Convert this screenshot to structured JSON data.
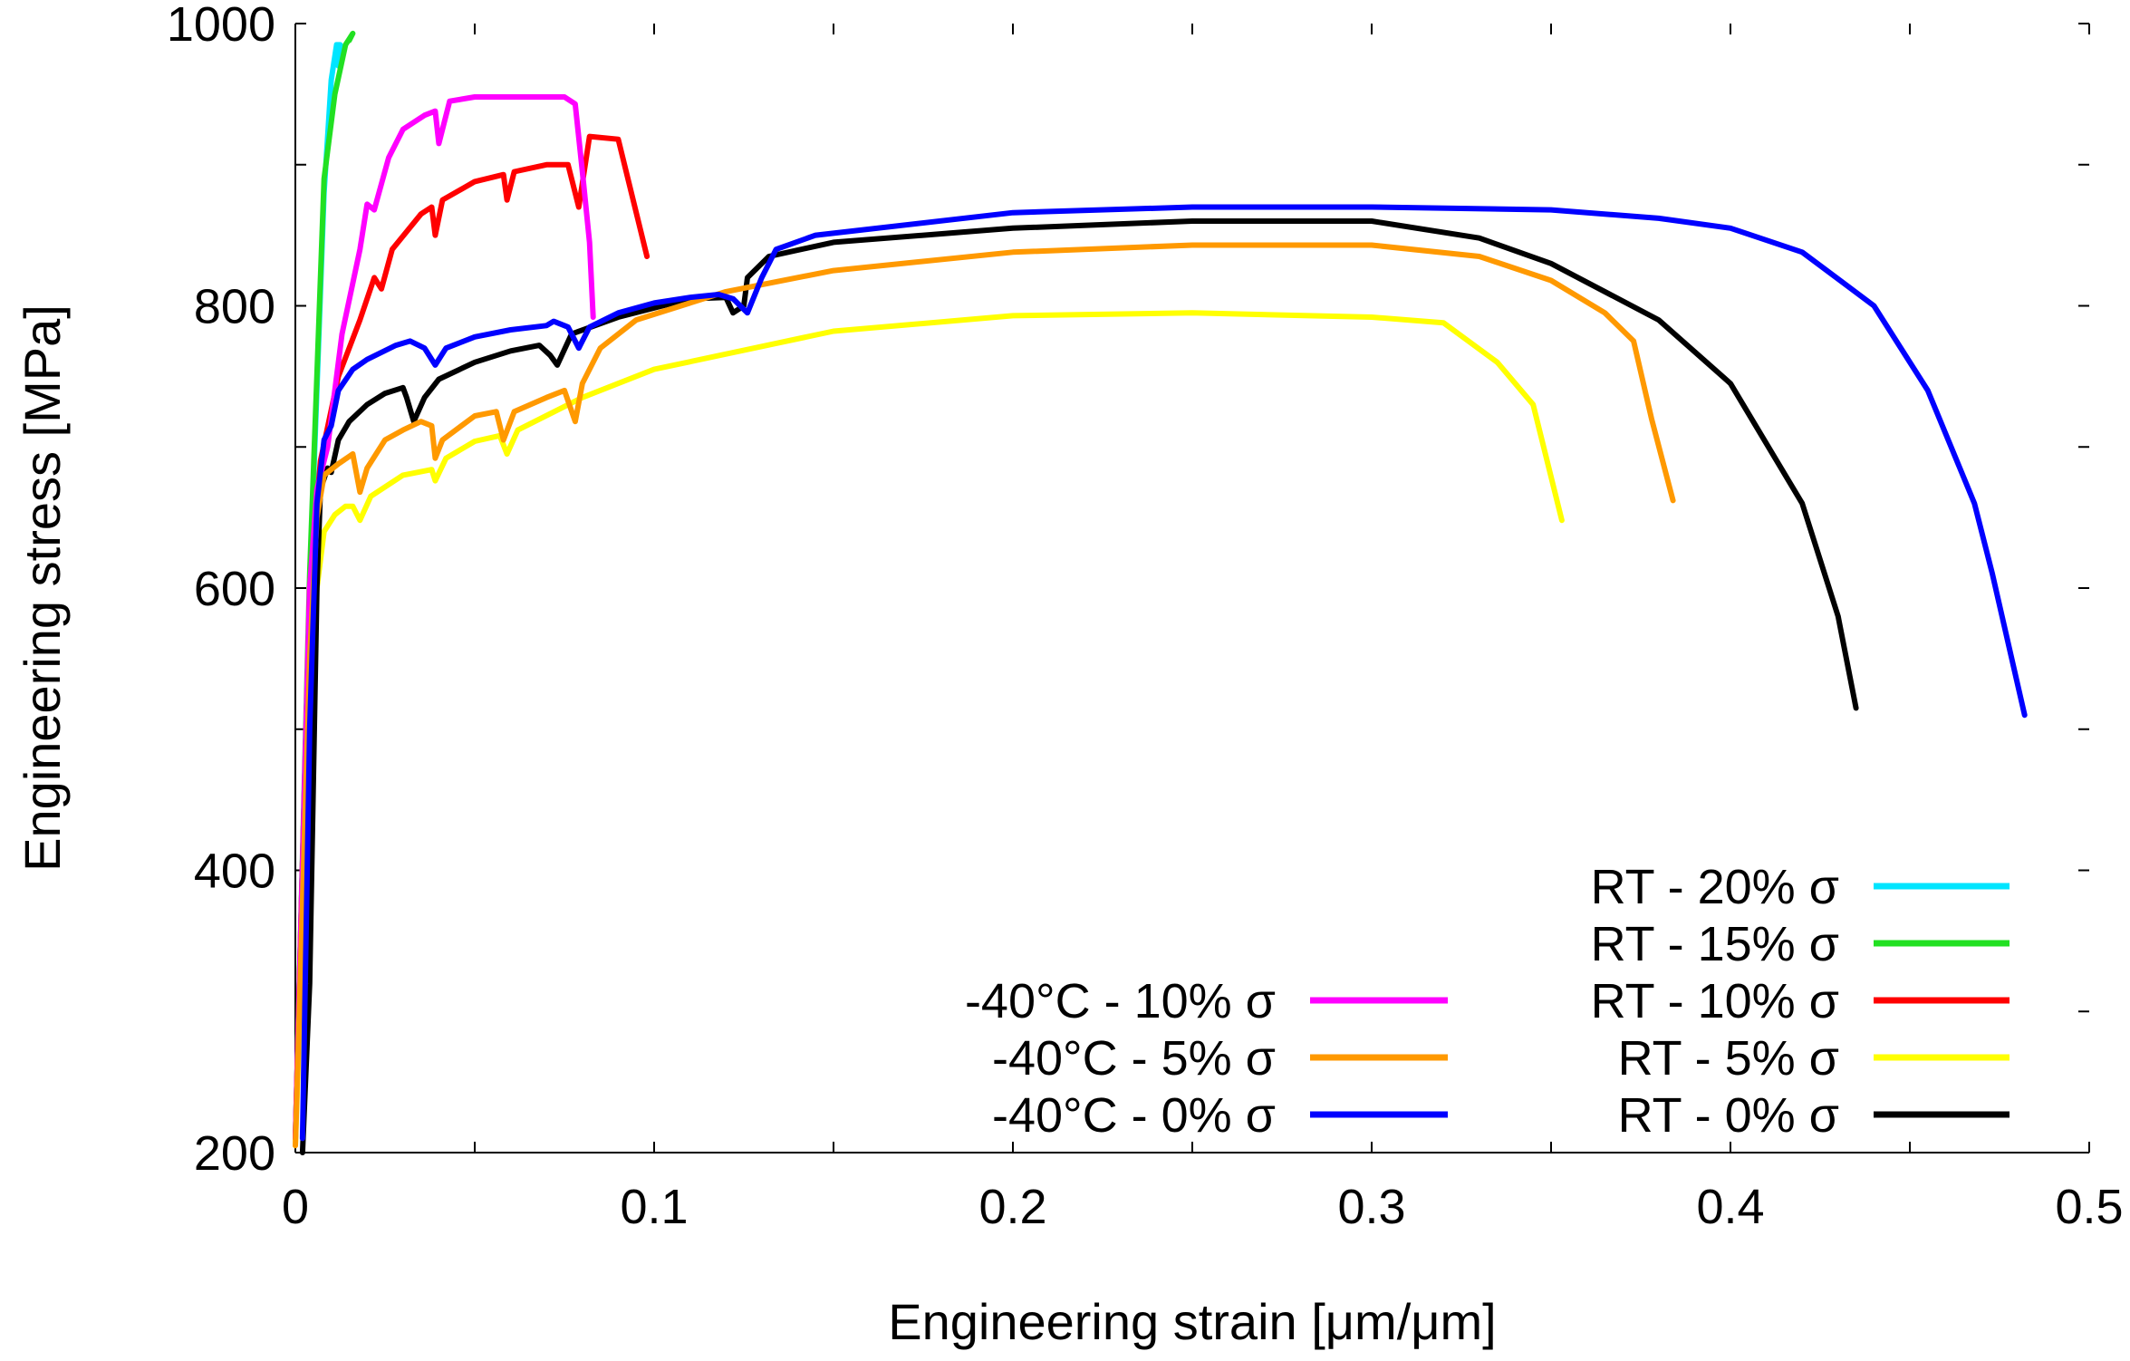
{
  "chart_data": {
    "type": "line",
    "xlabel": "Engineering strain [μm/μm]",
    "ylabel": "Engineering stress [MPa]",
    "xlim": [
      0,
      0.5
    ],
    "ylim": [
      200,
      1000
    ],
    "x_ticks": [
      0,
      0.1,
      0.2,
      0.3,
      0.4,
      0.5
    ],
    "x_tick_labels": [
      "0",
      "0.1",
      "0.2",
      "0.3",
      "0.4",
      "0.5"
    ],
    "y_ticks": [
      200,
      400,
      600,
      800,
      1000
    ],
    "y_tick_labels": [
      "200",
      "400",
      "600",
      "800",
      "1000"
    ],
    "grid": false,
    "legend_placement": "bottom-right, two columns",
    "series": [
      {
        "name": "RT - 20% σ",
        "color": "#00e5ff",
        "legend_column": "right",
        "points": [
          [
            0,
            210
          ],
          [
            0.004,
            600
          ],
          [
            0.008,
            880
          ],
          [
            0.01,
            960
          ],
          [
            0.0115,
            985
          ],
          [
            0.0125,
            985
          ],
          [
            0.012,
            970
          ]
        ]
      },
      {
        "name": "RT - 15% σ",
        "color": "#22e022",
        "legend_column": "right",
        "points": [
          [
            0,
            210
          ],
          [
            0.004,
            610
          ],
          [
            0.008,
            890
          ],
          [
            0.011,
            950
          ],
          [
            0.014,
            985
          ],
          [
            0.016,
            993
          ],
          [
            0.015,
            988
          ]
        ]
      },
      {
        "name": "RT - 10% σ",
        "color": "#ff0000",
        "legend_column": "right",
        "points": [
          [
            0,
            210
          ],
          [
            0.004,
            600
          ],
          [
            0.007,
            690
          ],
          [
            0.012,
            750
          ],
          [
            0.018,
            790
          ],
          [
            0.022,
            820
          ],
          [
            0.024,
            812
          ],
          [
            0.027,
            840
          ],
          [
            0.035,
            865
          ],
          [
            0.038,
            870
          ],
          [
            0.039,
            850
          ],
          [
            0.041,
            875
          ],
          [
            0.05,
            888
          ],
          [
            0.058,
            893
          ],
          [
            0.059,
            875
          ],
          [
            0.061,
            895
          ],
          [
            0.07,
            900
          ],
          [
            0.076,
            900
          ],
          [
            0.079,
            870
          ],
          [
            0.082,
            920
          ],
          [
            0.09,
            918
          ],
          [
            0.098,
            835
          ]
        ]
      },
      {
        "name": "RT - 5% σ",
        "color": "#ffff00",
        "legend_column": "right",
        "points": [
          [
            0,
            205
          ],
          [
            0.004,
            500
          ],
          [
            0.006,
            600
          ],
          [
            0.008,
            640
          ],
          [
            0.011,
            652
          ],
          [
            0.014,
            658
          ],
          [
            0.016,
            658
          ],
          [
            0.018,
            648
          ],
          [
            0.021,
            665
          ],
          [
            0.03,
            680
          ],
          [
            0.038,
            684
          ],
          [
            0.039,
            676
          ],
          [
            0.042,
            692
          ],
          [
            0.05,
            704
          ],
          [
            0.057,
            708
          ],
          [
            0.059,
            695
          ],
          [
            0.062,
            712
          ],
          [
            0.08,
            735
          ],
          [
            0.1,
            755
          ],
          [
            0.15,
            782
          ],
          [
            0.2,
            793
          ],
          [
            0.25,
            795
          ],
          [
            0.3,
            792
          ],
          [
            0.32,
            788
          ],
          [
            0.335,
            760
          ],
          [
            0.345,
            730
          ],
          [
            0.353,
            648
          ]
        ]
      },
      {
        "name": "RT - 0% σ",
        "color": "#000000",
        "legend_column": "right",
        "points": [
          [
            0.002,
            200
          ],
          [
            0.004,
            320
          ],
          [
            0.006,
            600
          ],
          [
            0.007,
            670
          ],
          [
            0.009,
            685
          ],
          [
            0.01,
            682
          ],
          [
            0.012,
            705
          ],
          [
            0.015,
            718
          ],
          [
            0.02,
            730
          ],
          [
            0.025,
            738
          ],
          [
            0.03,
            742
          ],
          [
            0.031,
            735
          ],
          [
            0.033,
            718
          ],
          [
            0.036,
            735
          ],
          [
            0.04,
            748
          ],
          [
            0.05,
            760
          ],
          [
            0.06,
            768
          ],
          [
            0.068,
            772
          ],
          [
            0.071,
            765
          ],
          [
            0.073,
            758
          ],
          [
            0.077,
            780
          ],
          [
            0.09,
            792
          ],
          [
            0.11,
            805
          ],
          [
            0.12,
            806
          ],
          [
            0.122,
            795
          ],
          [
            0.125,
            800
          ],
          [
            0.126,
            820
          ],
          [
            0.132,
            835
          ],
          [
            0.15,
            845
          ],
          [
            0.2,
            855
          ],
          [
            0.25,
            860
          ],
          [
            0.3,
            860
          ],
          [
            0.33,
            848
          ],
          [
            0.35,
            830
          ],
          [
            0.38,
            790
          ],
          [
            0.4,
            745
          ],
          [
            0.42,
            660
          ],
          [
            0.43,
            580
          ],
          [
            0.435,
            515
          ]
        ]
      },
      {
        "name": "-40°C - 10% σ",
        "color": "#ff00ff",
        "legend_column": "left",
        "points": [
          [
            0,
            210
          ],
          [
            0.004,
            600
          ],
          [
            0.006,
            670
          ],
          [
            0.009,
            700
          ],
          [
            0.013,
            780
          ],
          [
            0.018,
            840
          ],
          [
            0.02,
            872
          ],
          [
            0.022,
            868
          ],
          [
            0.026,
            905
          ],
          [
            0.03,
            925
          ],
          [
            0.036,
            935
          ],
          [
            0.039,
            938
          ],
          [
            0.04,
            915
          ],
          [
            0.043,
            945
          ],
          [
            0.05,
            948
          ],
          [
            0.06,
            948
          ],
          [
            0.075,
            948
          ],
          [
            0.078,
            943
          ],
          [
            0.08,
            895
          ],
          [
            0.082,
            845
          ],
          [
            0.083,
            792
          ]
        ]
      },
      {
        "name": "-40°C - 5% σ",
        "color": "#ff9900",
        "legend_column": "left",
        "points": [
          [
            0,
            205
          ],
          [
            0.004,
            550
          ],
          [
            0.006,
            650
          ],
          [
            0.008,
            680
          ],
          [
            0.012,
            688
          ],
          [
            0.016,
            695
          ],
          [
            0.018,
            668
          ],
          [
            0.02,
            685
          ],
          [
            0.025,
            705
          ],
          [
            0.03,
            712
          ],
          [
            0.035,
            718
          ],
          [
            0.038,
            715
          ],
          [
            0.039,
            692
          ],
          [
            0.041,
            705
          ],
          [
            0.05,
            722
          ],
          [
            0.056,
            725
          ],
          [
            0.058,
            705
          ],
          [
            0.061,
            725
          ],
          [
            0.07,
            735
          ],
          [
            0.075,
            740
          ],
          [
            0.078,
            718
          ],
          [
            0.08,
            745
          ],
          [
            0.085,
            770
          ],
          [
            0.095,
            790
          ],
          [
            0.12,
            810
          ],
          [
            0.15,
            825
          ],
          [
            0.2,
            838
          ],
          [
            0.25,
            843
          ],
          [
            0.3,
            843
          ],
          [
            0.33,
            835
          ],
          [
            0.35,
            818
          ],
          [
            0.365,
            795
          ],
          [
            0.373,
            775
          ],
          [
            0.378,
            720
          ],
          [
            0.384,
            662
          ]
        ]
      },
      {
        "name": "-40°C - 0% σ",
        "color": "#0000ff",
        "legend_column": "left",
        "points": [
          [
            0.002,
            210
          ],
          [
            0.004,
            500
          ],
          [
            0.006,
            660
          ],
          [
            0.008,
            705
          ],
          [
            0.01,
            715
          ],
          [
            0.012,
            740
          ],
          [
            0.016,
            755
          ],
          [
            0.02,
            762
          ],
          [
            0.028,
            772
          ],
          [
            0.032,
            775
          ],
          [
            0.036,
            770
          ],
          [
            0.039,
            758
          ],
          [
            0.042,
            770
          ],
          [
            0.05,
            778
          ],
          [
            0.06,
            783
          ],
          [
            0.07,
            786
          ],
          [
            0.072,
            789
          ],
          [
            0.076,
            785
          ],
          [
            0.079,
            770
          ],
          [
            0.082,
            785
          ],
          [
            0.09,
            795
          ],
          [
            0.1,
            802
          ],
          [
            0.11,
            806
          ],
          [
            0.118,
            808
          ],
          [
            0.122,
            805
          ],
          [
            0.126,
            795
          ],
          [
            0.13,
            820
          ],
          [
            0.134,
            840
          ],
          [
            0.145,
            850
          ],
          [
            0.2,
            866
          ],
          [
            0.25,
            870
          ],
          [
            0.3,
            870
          ],
          [
            0.35,
            868
          ],
          [
            0.38,
            862
          ],
          [
            0.4,
            855
          ],
          [
            0.42,
            838
          ],
          [
            0.44,
            800
          ],
          [
            0.455,
            740
          ],
          [
            0.468,
            660
          ],
          [
            0.473,
            610
          ],
          [
            0.482,
            510
          ]
        ]
      }
    ]
  }
}
